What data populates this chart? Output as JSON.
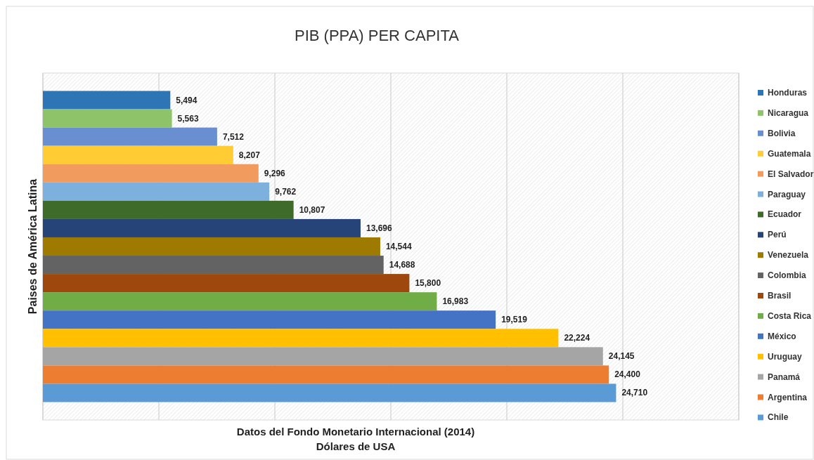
{
  "chart_data": {
    "type": "bar",
    "orientation": "horizontal",
    "title": "PIB (PPA) PER CAPITA",
    "ylabel": "Paises de América Latina",
    "xlabel": "Datos del Fondo Monetario Internacional (2014)\nDólares de USA",
    "categories": [
      null
    ],
    "grid": "x",
    "legend": "right",
    "series": [
      {
        "name": "Honduras",
        "color": "#2e75b6",
        "values": [
          5494
        ],
        "value_labels": [
          "5,494"
        ]
      },
      {
        "name": "Nicaragua",
        "color": "#8fc36a",
        "values": [
          5563
        ],
        "value_labels": [
          "5,563"
        ]
      },
      {
        "name": "Bolivia",
        "color": "#6a8fd0",
        "values": [
          7512
        ],
        "value_labels": [
          "7,512"
        ]
      },
      {
        "name": "Guatemala",
        "color": "#ffcd33",
        "values": [
          8207
        ],
        "value_labels": [
          "8,207"
        ]
      },
      {
        "name": "El Salvador",
        "color": "#f19b5f",
        "values": [
          9296
        ],
        "value_labels": [
          "9,296"
        ]
      },
      {
        "name": "Paraguay",
        "color": "#7eb0de",
        "values": [
          9762
        ],
        "value_labels": [
          "9,762"
        ]
      },
      {
        "name": "Ecuador",
        "color": "#3e6b2a",
        "values": [
          10807
        ],
        "value_labels": [
          "10,807"
        ]
      },
      {
        "name": "Perú",
        "color": "#264478",
        "values": [
          13696
        ],
        "value_labels": [
          "13,696"
        ]
      },
      {
        "name": "Venezuela",
        "color": "#9e7a00",
        "values": [
          14544
        ],
        "value_labels": [
          "14,544"
        ]
      },
      {
        "name": "Colombia",
        "color": "#636363",
        "values": [
          14688
        ],
        "value_labels": [
          "14,688"
        ]
      },
      {
        "name": "Brasil",
        "color": "#9e480e",
        "values": [
          15800
        ],
        "value_labels": [
          "15,800"
        ]
      },
      {
        "name": "Costa Rica",
        "color": "#70ad47",
        "values": [
          16983
        ],
        "value_labels": [
          "16,983"
        ]
      },
      {
        "name": "México",
        "color": "#4472c4",
        "values": [
          19519
        ],
        "value_labels": [
          "19,519"
        ]
      },
      {
        "name": "Uruguay",
        "color": "#ffc000",
        "values": [
          22224
        ],
        "value_labels": [
          "22,224"
        ]
      },
      {
        "name": "Panamá",
        "color": "#a5a5a5",
        "values": [
          24145
        ],
        "value_labels": [
          "24,145"
        ]
      },
      {
        "name": "Argentina",
        "color": "#ed7d31",
        "values": [
          24400
        ],
        "value_labels": [
          "24,400"
        ]
      },
      {
        "name": "Chile",
        "color": "#5b9bd5",
        "values": [
          24710
        ],
        "value_labels": [
          "24,710"
        ]
      }
    ]
  }
}
